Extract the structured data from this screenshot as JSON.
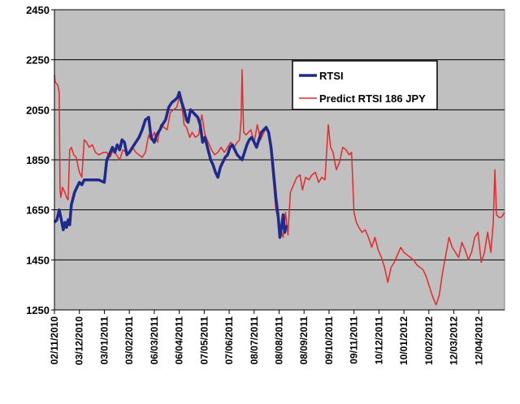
{
  "chart_data": {
    "type": "line",
    "ylim": [
      1250,
      2450
    ],
    "yticks": [
      1250,
      1450,
      1650,
      1850,
      2050,
      2250,
      2450
    ],
    "xlim": [
      "2010-11-02",
      "2012-05-14"
    ],
    "xtick_labels": [
      "02/11/2010",
      "03/12/2010",
      "03/01/2011",
      "03/02/2011",
      "06/03/2011",
      "06/04/2011",
      "07/05/2011",
      "07/06/2011",
      "08/07/2011",
      "08/08/2011",
      "08/09/2011",
      "09/10/2011",
      "09/11/2011",
      "10/12/2011",
      "10/01/2012",
      "10/02/2012",
      "12/03/2012",
      "12/04/2012"
    ],
    "xticks": [
      "2010-11-02",
      "2010-12-03",
      "2011-01-03",
      "2011-02-03",
      "2011-03-06",
      "2011-04-06",
      "2011-05-07",
      "2011-06-07",
      "2011-07-08",
      "2011-08-08",
      "2011-09-08",
      "2011-10-09",
      "2011-11-09",
      "2011-12-10",
      "2012-01-10",
      "2012-02-10",
      "2012-03-12",
      "2012-04-12"
    ],
    "grid": true,
    "legend_position": "top-right",
    "series": [
      {
        "name": "RTSI",
        "color": "#1f2a8c",
        "points": [
          [
            "2010-11-02",
            1600
          ],
          [
            "2010-11-05",
            1610
          ],
          [
            "2010-11-08",
            1650
          ],
          [
            "2010-11-10",
            1620
          ],
          [
            "2010-11-13",
            1570
          ],
          [
            "2010-11-15",
            1600
          ],
          [
            "2010-11-17",
            1580
          ],
          [
            "2010-11-19",
            1610
          ],
          [
            "2010-11-21",
            1590
          ],
          [
            "2010-11-23",
            1670
          ],
          [
            "2010-11-27",
            1720
          ],
          [
            "2010-11-30",
            1740
          ],
          [
            "2010-12-03",
            1760
          ],
          [
            "2010-12-06",
            1750
          ],
          [
            "2010-12-09",
            1770
          ],
          [
            "2010-12-15",
            1770
          ],
          [
            "2010-12-21",
            1770
          ],
          [
            "2010-12-27",
            1770
          ],
          [
            "2011-01-03",
            1760
          ],
          [
            "2011-01-06",
            1850
          ],
          [
            "2011-01-09",
            1870
          ],
          [
            "2011-01-13",
            1900
          ],
          [
            "2011-01-16",
            1880
          ],
          [
            "2011-01-19",
            1910
          ],
          [
            "2011-01-22",
            1890
          ],
          [
            "2011-01-25",
            1930
          ],
          [
            "2011-01-28",
            1920
          ],
          [
            "2011-01-31",
            1870
          ],
          [
            "2011-02-03",
            1880
          ],
          [
            "2011-02-07",
            1900
          ],
          [
            "2011-02-11",
            1920
          ],
          [
            "2011-02-15",
            1940
          ],
          [
            "2011-02-19",
            1970
          ],
          [
            "2011-02-23",
            2010
          ],
          [
            "2011-02-27",
            2020
          ],
          [
            "2011-03-02",
            1940
          ],
          [
            "2011-03-06",
            1920
          ],
          [
            "2011-03-09",
            1950
          ],
          [
            "2011-03-13",
            1970
          ],
          [
            "2011-03-16",
            1990
          ],
          [
            "2011-03-20",
            2010
          ],
          [
            "2011-03-24",
            2060
          ],
          [
            "2011-03-28",
            2080
          ],
          [
            "2011-04-01",
            2090
          ],
          [
            "2011-04-04",
            2100
          ],
          [
            "2011-04-06",
            2120
          ],
          [
            "2011-04-09",
            2080
          ],
          [
            "2011-04-12",
            2050
          ],
          [
            "2011-04-15",
            2010
          ],
          [
            "2011-04-17",
            2000
          ],
          [
            "2011-04-20",
            2050
          ],
          [
            "2011-04-23",
            2040
          ],
          [
            "2011-04-26",
            2030
          ],
          [
            "2011-04-29",
            2020
          ],
          [
            "2011-05-02",
            1990
          ],
          [
            "2011-05-05",
            1920
          ],
          [
            "2011-05-08",
            1940
          ],
          [
            "2011-05-11",
            1900
          ],
          [
            "2011-05-15",
            1850
          ],
          [
            "2011-05-18",
            1830
          ],
          [
            "2011-05-21",
            1800
          ],
          [
            "2011-05-24",
            1780
          ],
          [
            "2011-05-27",
            1820
          ],
          [
            "2011-05-30",
            1840
          ],
          [
            "2011-06-02",
            1860
          ],
          [
            "2011-06-05",
            1870
          ],
          [
            "2011-06-08",
            1900
          ],
          [
            "2011-06-11",
            1910
          ],
          [
            "2011-06-14",
            1890
          ],
          [
            "2011-06-17",
            1870
          ],
          [
            "2011-06-20",
            1860
          ],
          [
            "2011-06-23",
            1850
          ],
          [
            "2011-06-26",
            1880
          ],
          [
            "2011-06-29",
            1910
          ],
          [
            "2011-07-02",
            1930
          ],
          [
            "2011-07-05",
            1940
          ],
          [
            "2011-07-08",
            1920
          ],
          [
            "2011-07-11",
            1900
          ],
          [
            "2011-07-14",
            1930
          ],
          [
            "2011-07-17",
            1960
          ],
          [
            "2011-07-20",
            1970
          ],
          [
            "2011-07-23",
            1980
          ],
          [
            "2011-07-26",
            1960
          ],
          [
            "2011-07-29",
            1900
          ],
          [
            "2011-08-01",
            1800
          ],
          [
            "2011-08-04",
            1700
          ],
          [
            "2011-08-07",
            1620
          ],
          [
            "2011-08-09",
            1540
          ],
          [
            "2011-08-11",
            1580
          ],
          [
            "2011-08-13",
            1630
          ],
          [
            "2011-08-15",
            1560
          ],
          [
            "2011-08-17",
            1590
          ]
        ]
      },
      {
        "name": "Predict RTSI 186 JPY",
        "color": "#e8282a",
        "points": [
          [
            "2010-11-02",
            2190
          ],
          [
            "2010-11-03",
            2160
          ],
          [
            "2010-11-06",
            2150
          ],
          [
            "2010-11-08",
            2120
          ],
          [
            "2010-11-09",
            1730
          ],
          [
            "2010-11-10",
            1700
          ],
          [
            "2010-11-12",
            1740
          ],
          [
            "2010-11-15",
            1720
          ],
          [
            "2010-11-17",
            1700
          ],
          [
            "2010-11-19",
            1690
          ],
          [
            "2010-11-21",
            1890
          ],
          [
            "2010-11-23",
            1900
          ],
          [
            "2010-11-26",
            1870
          ],
          [
            "2010-11-29",
            1860
          ],
          [
            "2010-12-01",
            1830
          ],
          [
            "2010-12-03",
            1800
          ],
          [
            "2010-12-06",
            1780
          ],
          [
            "2010-12-09",
            1930
          ],
          [
            "2010-12-12",
            1920
          ],
          [
            "2010-12-15",
            1900
          ],
          [
            "2010-12-19",
            1910
          ],
          [
            "2010-12-23",
            1880
          ],
          [
            "2010-12-27",
            1870
          ],
          [
            "2011-01-02",
            1880
          ],
          [
            "2011-01-06",
            1880
          ],
          [
            "2011-01-10",
            1860
          ],
          [
            "2011-01-14",
            1890
          ],
          [
            "2011-01-18",
            1870
          ],
          [
            "2011-01-22",
            1850
          ],
          [
            "2011-01-26",
            1890
          ],
          [
            "2011-01-30",
            1880
          ],
          [
            "2011-02-03",
            1880
          ],
          [
            "2011-02-07",
            1900
          ],
          [
            "2011-02-11",
            1880
          ],
          [
            "2011-02-15",
            1870
          ],
          [
            "2011-02-19",
            1860
          ],
          [
            "2011-02-23",
            1880
          ],
          [
            "2011-02-27",
            1950
          ],
          [
            "2011-03-02",
            1930
          ],
          [
            "2011-03-06",
            1960
          ],
          [
            "2011-03-10",
            1920
          ],
          [
            "2011-03-14",
            1990
          ],
          [
            "2011-03-18",
            1980
          ],
          [
            "2011-03-22",
            1970
          ],
          [
            "2011-03-26",
            2040
          ],
          [
            "2011-03-30",
            2050
          ],
          [
            "2011-04-03",
            2060
          ],
          [
            "2011-04-06",
            2100
          ],
          [
            "2011-04-09",
            2070
          ],
          [
            "2011-04-12",
            1990
          ],
          [
            "2011-04-15",
            1980
          ],
          [
            "2011-04-19",
            1940
          ],
          [
            "2011-04-22",
            1960
          ],
          [
            "2011-04-26",
            1940
          ],
          [
            "2011-04-30",
            1950
          ],
          [
            "2011-05-04",
            2030
          ],
          [
            "2011-05-08",
            1950
          ],
          [
            "2011-05-12",
            1920
          ],
          [
            "2011-05-16",
            1890
          ],
          [
            "2011-05-20",
            1870
          ],
          [
            "2011-05-24",
            1880
          ],
          [
            "2011-05-28",
            1900
          ],
          [
            "2011-06-01",
            1880
          ],
          [
            "2011-06-05",
            1900
          ],
          [
            "2011-06-09",
            1920
          ],
          [
            "2011-06-13",
            1900
          ],
          [
            "2011-06-17",
            1920
          ],
          [
            "2011-06-20",
            1930
          ],
          [
            "2011-06-22",
            2020
          ],
          [
            "2011-06-23",
            2210
          ],
          [
            "2011-06-25",
            1960
          ],
          [
            "2011-06-28",
            1950
          ],
          [
            "2011-07-01",
            1960
          ],
          [
            "2011-07-04",
            1970
          ],
          [
            "2011-07-08",
            1920
          ],
          [
            "2011-07-12",
            1990
          ],
          [
            "2011-07-16",
            1930
          ],
          [
            "2011-07-20",
            1960
          ],
          [
            "2011-07-24",
            1980
          ],
          [
            "2011-07-28",
            1910
          ],
          [
            "2011-08-01",
            1760
          ],
          [
            "2011-08-04",
            1650
          ],
          [
            "2011-08-07",
            1610
          ],
          [
            "2011-08-10",
            1570
          ],
          [
            "2011-08-13",
            1540
          ],
          [
            "2011-08-16",
            1640
          ],
          [
            "2011-08-19",
            1550
          ],
          [
            "2011-08-22",
            1720
          ],
          [
            "2011-08-26",
            1750
          ],
          [
            "2011-08-30",
            1780
          ],
          [
            "2011-09-03",
            1790
          ],
          [
            "2011-09-06",
            1730
          ],
          [
            "2011-09-10",
            1780
          ],
          [
            "2011-09-14",
            1770
          ],
          [
            "2011-09-18",
            1790
          ],
          [
            "2011-09-22",
            1800
          ],
          [
            "2011-09-26",
            1760
          ],
          [
            "2011-09-30",
            1780
          ],
          [
            "2011-10-04",
            1770
          ],
          [
            "2011-10-06",
            1880
          ],
          [
            "2011-10-08",
            1990
          ],
          [
            "2011-10-11",
            1900
          ],
          [
            "2011-10-14",
            1880
          ],
          [
            "2011-10-18",
            1810
          ],
          [
            "2011-10-22",
            1840
          ],
          [
            "2011-10-26",
            1900
          ],
          [
            "2011-10-30",
            1890
          ],
          [
            "2011-11-03",
            1870
          ],
          [
            "2011-11-06",
            1880
          ],
          [
            "2011-11-09",
            1640
          ],
          [
            "2011-11-12",
            1600
          ],
          [
            "2011-11-15",
            1580
          ],
          [
            "2011-11-19",
            1560
          ],
          [
            "2011-11-23",
            1570
          ],
          [
            "2011-11-27",
            1540
          ],
          [
            "2011-12-01",
            1500
          ],
          [
            "2011-12-05",
            1540
          ],
          [
            "2011-12-09",
            1490
          ],
          [
            "2011-12-13",
            1460
          ],
          [
            "2011-12-17",
            1420
          ],
          [
            "2011-12-21",
            1360
          ],
          [
            "2011-12-25",
            1420
          ],
          [
            "2011-12-29",
            1440
          ],
          [
            "2012-01-02",
            1470
          ],
          [
            "2012-01-06",
            1500
          ],
          [
            "2012-01-10",
            1480
          ],
          [
            "2012-01-14",
            1470
          ],
          [
            "2012-01-18",
            1460
          ],
          [
            "2012-01-22",
            1450
          ],
          [
            "2012-01-26",
            1430
          ],
          [
            "2012-01-30",
            1420
          ],
          [
            "2012-02-03",
            1410
          ],
          [
            "2012-02-07",
            1380
          ],
          [
            "2012-02-11",
            1340
          ],
          [
            "2012-02-15",
            1300
          ],
          [
            "2012-02-19",
            1270
          ],
          [
            "2012-02-23",
            1310
          ],
          [
            "2012-02-27",
            1400
          ],
          [
            "2012-03-02",
            1470
          ],
          [
            "2012-03-06",
            1540
          ],
          [
            "2012-03-10",
            1500
          ],
          [
            "2012-03-14",
            1480
          ],
          [
            "2012-03-18",
            1460
          ],
          [
            "2012-03-22",
            1520
          ],
          [
            "2012-03-26",
            1490
          ],
          [
            "2012-03-30",
            1450
          ],
          [
            "2012-04-03",
            1480
          ],
          [
            "2012-04-07",
            1540
          ],
          [
            "2012-04-11",
            1560
          ],
          [
            "2012-04-15",
            1440
          ],
          [
            "2012-04-19",
            1480
          ],
          [
            "2012-04-23",
            1560
          ],
          [
            "2012-04-27",
            1480
          ],
          [
            "2012-04-30",
            1600
          ],
          [
            "2012-05-02",
            1810
          ],
          [
            "2012-05-04",
            1630
          ],
          [
            "2012-05-07",
            1620
          ],
          [
            "2012-05-10",
            1620
          ],
          [
            "2012-05-14",
            1640
          ]
        ]
      }
    ]
  }
}
